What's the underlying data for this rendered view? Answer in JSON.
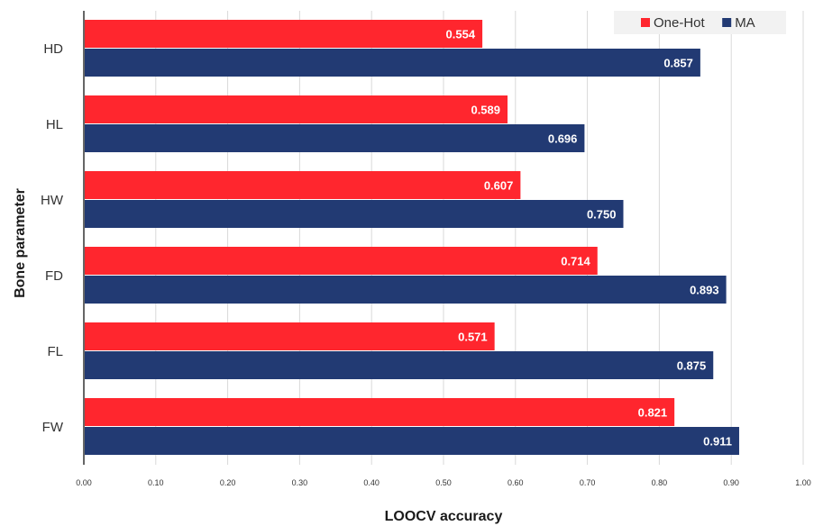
{
  "chart_data": {
    "type": "bar",
    "orientation": "horizontal",
    "title": "",
    "xlabel": "LOOCV accuracy",
    "ylabel": "Bone parameter",
    "categories": [
      "HD",
      "HL",
      "HW",
      "FD",
      "FL",
      "FW"
    ],
    "series": [
      {
        "name": "One-Hot",
        "color": "#ff262e",
        "values": [
          0.554,
          0.589,
          0.607,
          0.714,
          0.571,
          0.821
        ],
        "labels": [
          "0.554",
          "0.589",
          "0.607",
          "0.714",
          "0.571",
          "0.821"
        ]
      },
      {
        "name": "MA",
        "color": "#223a73",
        "values": [
          0.857,
          0.696,
          0.75,
          0.893,
          0.875,
          0.911
        ],
        "labels": [
          "0.857",
          "0.696",
          "0.750",
          "0.893",
          "0.875",
          "0.911"
        ]
      }
    ],
    "xlim": [
      0,
      1
    ],
    "xticks": [
      0,
      0.1,
      0.2,
      0.3,
      0.4,
      0.5,
      0.6,
      0.7,
      0.8,
      0.9,
      1.0
    ],
    "xtick_labels": [
      "0.00",
      "0.10",
      "0.20",
      "0.30",
      "0.40",
      "0.50",
      "0.60",
      "0.70",
      "0.80",
      "0.90",
      "1.00"
    ],
    "grid": "vertical",
    "legend": "top-right"
  }
}
